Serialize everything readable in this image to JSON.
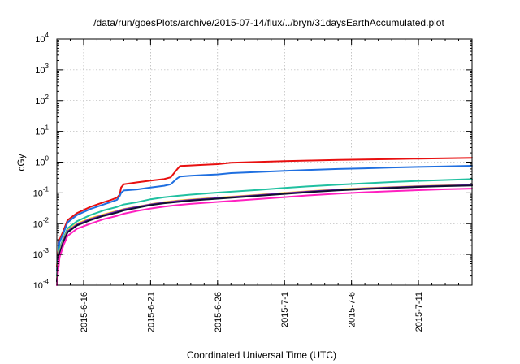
{
  "chart_data": {
    "type": "line",
    "title": "/data/run/goesPlots/archive/2015-07-14/flux/../bryn/31daysEarthAccumulated.plot",
    "xlabel": "Coordinated Universal Time (UTC)",
    "ylabel": "cGy",
    "yscale": "log",
    "ylim": [
      0.0001,
      10000
    ],
    "xlim": [
      0,
      31
    ],
    "x_origin_date": "2015-06-14",
    "y_ticks": [
      {
        "base": "10",
        "exp": "-4"
      },
      {
        "base": "10",
        "exp": "-3"
      },
      {
        "base": "10",
        "exp": "-2"
      },
      {
        "base": "10",
        "exp": "-1"
      },
      {
        "base": "10",
        "exp": "0"
      },
      {
        "base": "10",
        "exp": "1"
      },
      {
        "base": "10",
        "exp": "2"
      },
      {
        "base": "10",
        "exp": "3"
      },
      {
        "base": "10",
        "exp": "4"
      }
    ],
    "x_ticks": [
      {
        "x": 2,
        "label": "2015-6-16"
      },
      {
        "x": 7,
        "label": "2015-6-21"
      },
      {
        "x": 12,
        "label": "2015-6-26"
      },
      {
        "x": 17,
        "label": "2015-7-1"
      },
      {
        "x": 22,
        "label": "2015-7-6"
      },
      {
        "x": 27,
        "label": "2015-7-11"
      }
    ],
    "grid": true,
    "legend": "none",
    "series": [
      {
        "color": "#e81010",
        "points": [
          [
            0,
            0.0004
          ],
          [
            0.2,
            0.003
          ],
          [
            0.5,
            0.006
          ],
          [
            0.8,
            0.013
          ],
          [
            1.5,
            0.022
          ],
          [
            2.5,
            0.035
          ],
          [
            3.5,
            0.05
          ],
          [
            4,
            0.058
          ],
          [
            4.5,
            0.07
          ],
          [
            4.7,
            0.09
          ],
          [
            4.8,
            0.15
          ],
          [
            5,
            0.19
          ],
          [
            6,
            0.22
          ],
          [
            7,
            0.25
          ],
          [
            8,
            0.28
          ],
          [
            8.5,
            0.32
          ],
          [
            9,
            0.6
          ],
          [
            9.2,
            0.75
          ],
          [
            10,
            0.78
          ],
          [
            11,
            0.82
          ],
          [
            12,
            0.86
          ],
          [
            13,
            0.95
          ],
          [
            15,
            1.02
          ],
          [
            17,
            1.08
          ],
          [
            19,
            1.13
          ],
          [
            21,
            1.18
          ],
          [
            23,
            1.22
          ],
          [
            25,
            1.26
          ],
          [
            27,
            1.3
          ],
          [
            29,
            1.34
          ],
          [
            31,
            1.38
          ]
        ]
      },
      {
        "color": "#1f6fe0",
        "points": [
          [
            0,
            0.0003
          ],
          [
            0.2,
            0.0025
          ],
          [
            0.5,
            0.005
          ],
          [
            0.8,
            0.011
          ],
          [
            1.5,
            0.019
          ],
          [
            2.5,
            0.03
          ],
          [
            3.5,
            0.042
          ],
          [
            4,
            0.05
          ],
          [
            4.5,
            0.06
          ],
          [
            4.7,
            0.08
          ],
          [
            4.8,
            0.1
          ],
          [
            5,
            0.12
          ],
          [
            6,
            0.13
          ],
          [
            7,
            0.15
          ],
          [
            8,
            0.17
          ],
          [
            8.5,
            0.19
          ],
          [
            9,
            0.3
          ],
          [
            9.2,
            0.34
          ],
          [
            10,
            0.36
          ],
          [
            11,
            0.38
          ],
          [
            12,
            0.4
          ],
          [
            13,
            0.44
          ],
          [
            15,
            0.48
          ],
          [
            17,
            0.52
          ],
          [
            19,
            0.56
          ],
          [
            21,
            0.6
          ],
          [
            23,
            0.63
          ],
          [
            25,
            0.67
          ],
          [
            27,
            0.7
          ],
          [
            29,
            0.73
          ],
          [
            31,
            0.76
          ]
        ]
      },
      {
        "color": "#20c0a0",
        "points": [
          [
            0,
            0.0002
          ],
          [
            0.2,
            0.0015
          ],
          [
            0.5,
            0.0035
          ],
          [
            0.8,
            0.007
          ],
          [
            1.5,
            0.012
          ],
          [
            2.5,
            0.019
          ],
          [
            3.5,
            0.027
          ],
          [
            4.5,
            0.035
          ],
          [
            5,
            0.042
          ],
          [
            6,
            0.05
          ],
          [
            7,
            0.062
          ],
          [
            8,
            0.072
          ],
          [
            9,
            0.08
          ],
          [
            10,
            0.088
          ],
          [
            12,
            0.102
          ],
          [
            15,
            0.125
          ],
          [
            17,
            0.145
          ],
          [
            19,
            0.165
          ],
          [
            21,
            0.185
          ],
          [
            23,
            0.205
          ],
          [
            25,
            0.225
          ],
          [
            27,
            0.245
          ],
          [
            29,
            0.262
          ],
          [
            31,
            0.28
          ]
        ]
      },
      {
        "color": "#ffd020",
        "points": [
          [
            0,
            0.00015
          ],
          [
            0.2,
            0.0012
          ],
          [
            0.5,
            0.003
          ],
          [
            0.8,
            0.006
          ],
          [
            1.5,
            0.01
          ],
          [
            2.5,
            0.015
          ],
          [
            3.5,
            0.02
          ],
          [
            4.5,
            0.026
          ],
          [
            5,
            0.03
          ],
          [
            6,
            0.036
          ],
          [
            7,
            0.043
          ],
          [
            8,
            0.05
          ],
          [
            9,
            0.056
          ],
          [
            10,
            0.061
          ],
          [
            12,
            0.07
          ],
          [
            15,
            0.087
          ],
          [
            17,
            0.1
          ],
          [
            19,
            0.115
          ],
          [
            21,
            0.13
          ],
          [
            23,
            0.143
          ],
          [
            25,
            0.155
          ],
          [
            27,
            0.166
          ],
          [
            29,
            0.176
          ],
          [
            31,
            0.185
          ]
        ]
      },
      {
        "color": "#7020c0",
        "points": [
          [
            0,
            0.00014
          ],
          [
            0.2,
            0.0011
          ],
          [
            0.5,
            0.0028
          ],
          [
            0.8,
            0.0056
          ],
          [
            1.5,
            0.0093
          ],
          [
            2.5,
            0.014
          ],
          [
            3.5,
            0.019
          ],
          [
            4.5,
            0.025
          ],
          [
            5,
            0.029
          ],
          [
            6,
            0.035
          ],
          [
            7,
            0.042
          ],
          [
            8,
            0.048
          ],
          [
            9,
            0.054
          ],
          [
            10,
            0.059
          ],
          [
            12,
            0.068
          ],
          [
            15,
            0.084
          ],
          [
            17,
            0.097
          ],
          [
            19,
            0.112
          ],
          [
            21,
            0.126
          ],
          [
            23,
            0.139
          ],
          [
            25,
            0.151
          ],
          [
            27,
            0.162
          ],
          [
            29,
            0.172
          ],
          [
            31,
            0.18
          ]
        ]
      },
      {
        "color": "#101030",
        "points": [
          [
            0,
            0.00013
          ],
          [
            0.2,
            0.001
          ],
          [
            0.5,
            0.0026
          ],
          [
            0.8,
            0.0052
          ],
          [
            1.5,
            0.0088
          ],
          [
            2.5,
            0.013
          ],
          [
            3.5,
            0.018
          ],
          [
            4.5,
            0.023
          ],
          [
            5,
            0.027
          ],
          [
            6,
            0.033
          ],
          [
            7,
            0.04
          ],
          [
            8,
            0.046
          ],
          [
            9,
            0.051
          ],
          [
            10,
            0.056
          ],
          [
            12,
            0.065
          ],
          [
            15,
            0.08
          ],
          [
            17,
            0.093
          ],
          [
            19,
            0.107
          ],
          [
            21,
            0.121
          ],
          [
            23,
            0.134
          ],
          [
            25,
            0.146
          ],
          [
            27,
            0.157
          ],
          [
            29,
            0.166
          ],
          [
            31,
            0.175
          ]
        ]
      },
      {
        "color": "#ff20c0",
        "points": [
          [
            0,
            0.0001
          ],
          [
            0.2,
            0.0008
          ],
          [
            0.5,
            0.002
          ],
          [
            0.8,
            0.004
          ],
          [
            1.5,
            0.0068
          ],
          [
            2.5,
            0.01
          ],
          [
            3.5,
            0.014
          ],
          [
            4.5,
            0.018
          ],
          [
            5,
            0.021
          ],
          [
            6,
            0.026
          ],
          [
            7,
            0.031
          ],
          [
            8,
            0.036
          ],
          [
            9,
            0.04
          ],
          [
            10,
            0.044
          ],
          [
            12,
            0.051
          ],
          [
            15,
            0.063
          ],
          [
            17,
            0.073
          ],
          [
            19,
            0.084
          ],
          [
            21,
            0.095
          ],
          [
            23,
            0.105
          ],
          [
            25,
            0.114
          ],
          [
            27,
            0.123
          ],
          [
            29,
            0.131
          ],
          [
            31,
            0.138
          ]
        ]
      }
    ]
  }
}
